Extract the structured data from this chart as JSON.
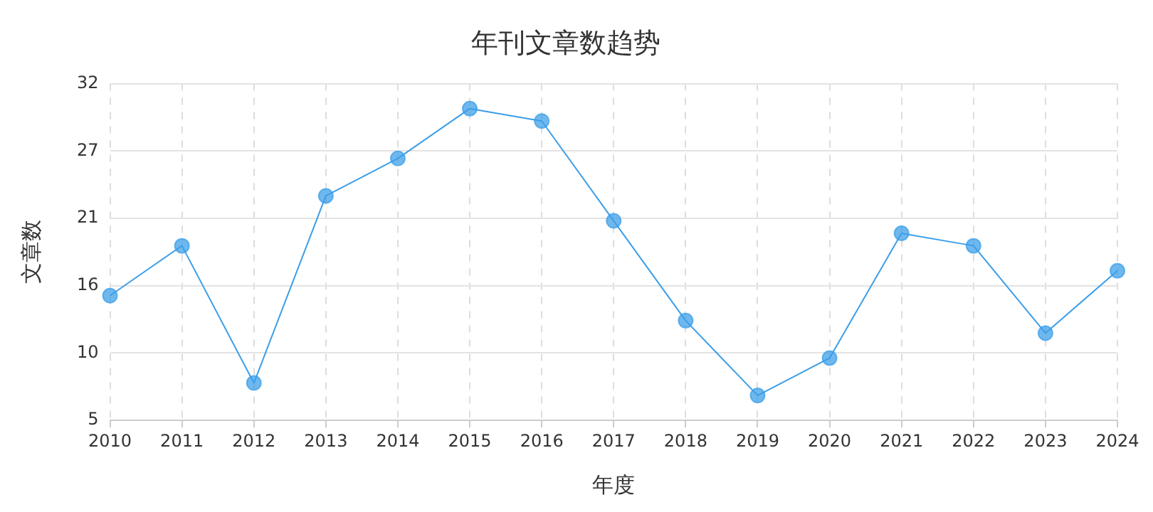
{
  "chart_data": {
    "type": "line",
    "title": "年刊文章数趋势",
    "xlabel": "年度",
    "ylabel": "文章数",
    "categories": [
      "2010",
      "2011",
      "2012",
      "2013",
      "2014",
      "2015",
      "2016",
      "2017",
      "2018",
      "2019",
      "2020",
      "2021",
      "2022",
      "2023",
      "2024"
    ],
    "series": [
      {
        "color": "#3b9ee8",
        "values": [
          15,
          19,
          8,
          23,
          26,
          30,
          29,
          21,
          13,
          7,
          10,
          20,
          19,
          12,
          17
        ]
      }
    ],
    "ylim": [
      5,
      32
    ],
    "yticks": [
      5,
      {
        "value": 10.4,
        "label": "10"
      },
      {
        "value": 15.8,
        "label": "16"
      },
      {
        "value": 21.2,
        "label": "21"
      },
      {
        "value": 26.6,
        "label": "27"
      },
      32
    ],
    "grid": true,
    "marker": "circle",
    "line_style": "solid"
  }
}
